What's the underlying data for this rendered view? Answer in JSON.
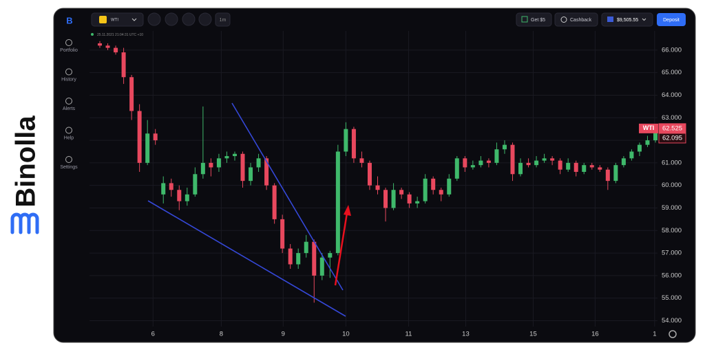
{
  "brand": "Binolla",
  "sidebar": [
    "Portfolio",
    "History",
    "Alerts",
    "Help",
    "Settings"
  ],
  "topbar": {
    "asset": "WTI",
    "timeframe": "1m",
    "bonus": "Get $5",
    "cashback": "Cashback",
    "balance": "$9,505.55",
    "deposit": "Deposit"
  },
  "timestamp": "25.11.2021 21:04:31 UTC +10",
  "chart_data": {
    "type": "candlestick",
    "candles": [
      [
        66.3,
        66.4,
        66.1,
        66.2
      ],
      [
        66.2,
        66.3,
        66.0,
        66.1
      ],
      [
        66.1,
        66.2,
        65.8,
        65.9
      ],
      [
        65.9,
        66.1,
        64.5,
        64.8
      ],
      [
        64.8,
        64.9,
        62.9,
        63.3
      ],
      [
        63.3,
        63.6,
        60.6,
        61.0
      ],
      [
        61.0,
        62.9,
        60.9,
        62.3
      ],
      [
        62.3,
        62.5,
        61.8,
        62.0
      ],
      [
        59.6,
        60.4,
        59.2,
        60.1
      ],
      [
        60.1,
        60.3,
        59.5,
        59.8
      ],
      [
        59.8,
        60.0,
        58.9,
        59.3
      ],
      [
        59.3,
        59.9,
        59.1,
        59.6
      ],
      [
        59.6,
        60.8,
        59.5,
        60.5
      ],
      [
        60.5,
        63.5,
        60.3,
        61.0
      ],
      [
        61.0,
        61.2,
        60.4,
        60.8
      ],
      [
        60.8,
        61.4,
        60.6,
        61.2
      ],
      [
        61.2,
        61.5,
        61.0,
        61.3
      ],
      [
        61.3,
        61.5,
        61.1,
        61.4
      ],
      [
        61.4,
        61.5,
        59.9,
        60.2
      ],
      [
        60.2,
        61.0,
        60.0,
        60.8
      ],
      [
        60.8,
        61.4,
        60.6,
        61.2
      ],
      [
        61.2,
        61.3,
        59.8,
        60.0
      ],
      [
        60.0,
        60.1,
        58.3,
        58.5
      ],
      [
        58.5,
        58.7,
        57.0,
        57.2
      ],
      [
        57.2,
        57.4,
        56.3,
        56.5
      ],
      [
        56.5,
        57.2,
        56.3,
        57.0
      ],
      [
        57.0,
        57.8,
        56.8,
        57.5
      ],
      [
        57.5,
        57.6,
        54.8,
        56.0
      ],
      [
        56.0,
        57.0,
        55.8,
        56.8
      ],
      [
        56.8,
        57.1,
        55.9,
        57.0
      ],
      [
        57.0,
        61.8,
        56.9,
        61.5
      ],
      [
        61.5,
        62.8,
        61.3,
        62.5
      ],
      [
        62.5,
        62.6,
        61.0,
        61.2
      ],
      [
        61.2,
        61.5,
        60.8,
        61.0
      ],
      [
        61.0,
        61.1,
        59.8,
        60.0
      ],
      [
        60.0,
        60.4,
        59.6,
        59.8
      ],
      [
        59.8,
        59.9,
        58.4,
        59.0
      ],
      [
        59.0,
        60.1,
        58.9,
        59.8
      ],
      [
        59.8,
        59.9,
        59.4,
        59.6
      ],
      [
        59.6,
        59.7,
        59.0,
        59.2
      ],
      [
        59.2,
        59.5,
        59.0,
        59.3
      ],
      [
        59.3,
        60.5,
        59.2,
        60.3
      ],
      [
        60.3,
        60.4,
        59.6,
        59.8
      ],
      [
        59.8,
        59.9,
        59.3,
        59.6
      ],
      [
        59.6,
        60.5,
        59.5,
        60.3
      ],
      [
        60.3,
        61.3,
        60.2,
        61.2
      ],
      [
        61.2,
        61.3,
        60.6,
        60.8
      ],
      [
        60.8,
        61.1,
        60.7,
        60.9
      ],
      [
        60.9,
        61.3,
        60.8,
        61.1
      ],
      [
        61.1,
        61.2,
        60.8,
        61.0
      ],
      [
        61.0,
        61.9,
        60.9,
        61.6
      ],
      [
        61.6,
        62.0,
        61.4,
        61.8
      ],
      [
        61.8,
        61.9,
        60.2,
        60.5
      ],
      [
        60.5,
        61.2,
        60.4,
        61.0
      ],
      [
        61.0,
        61.2,
        60.8,
        60.9
      ],
      [
        60.9,
        61.3,
        60.8,
        61.1
      ],
      [
        61.1,
        61.4,
        61.0,
        61.2
      ],
      [
        61.2,
        61.3,
        60.9,
        61.1
      ],
      [
        61.1,
        61.2,
        60.5,
        60.7
      ],
      [
        60.7,
        61.2,
        60.6,
        61.0
      ],
      [
        61.0,
        61.1,
        60.4,
        60.6
      ],
      [
        60.6,
        61.0,
        60.5,
        60.9
      ],
      [
        60.9,
        61.0,
        60.7,
        60.8
      ],
      [
        60.8,
        60.9,
        60.6,
        60.7
      ],
      [
        60.7,
        60.8,
        59.8,
        60.2
      ],
      [
        60.2,
        61.0,
        60.1,
        60.9
      ],
      [
        60.9,
        61.3,
        60.8,
        61.2
      ],
      [
        61.2,
        61.6,
        61.1,
        61.5
      ],
      [
        61.5,
        61.9,
        61.3,
        61.8
      ],
      [
        61.8,
        62.2,
        61.7,
        62.0
      ],
      [
        62.0,
        62.6,
        61.9,
        62.5
      ]
    ],
    "up_color": "#3fb96b",
    "down_color": "#e8485e",
    "xlim": [
      0,
      70
    ],
    "xticks": [
      {
        "value": 6.7,
        "label": "6"
      },
      {
        "value": 15.3,
        "label": "8"
      },
      {
        "value": 23.1,
        "label": "9"
      },
      {
        "value": 31.0,
        "label": "10"
      },
      {
        "value": 38.9,
        "label": "11"
      },
      {
        "value": 46.1,
        "label": "13"
      },
      {
        "value": 54.6,
        "label": "15"
      },
      {
        "value": 62.4,
        "label": "16"
      },
      {
        "value": 69.9,
        "label": "1"
      }
    ],
    "ylim": [
      53.6,
      66.85
    ],
    "yticks": [
      {
        "value": 54,
        "label": "54.000"
      },
      {
        "value": 55,
        "label": "55.000"
      },
      {
        "value": 56,
        "label": "56.000"
      },
      {
        "value": 57,
        "label": "57.000"
      },
      {
        "value": 58,
        "label": "58.000"
      },
      {
        "value": 59,
        "label": "59.000"
      },
      {
        "value": 60,
        "label": "60.000"
      },
      {
        "value": 61,
        "label": "61.000"
      },
      {
        "value": 62,
        "label": "62.000"
      },
      {
        "value": 63,
        "label": "63.000"
      },
      {
        "value": 64,
        "label": "64.000"
      },
      {
        "value": 65,
        "label": "65.000"
      },
      {
        "value": 66,
        "label": "66.000"
      }
    ],
    "grid": true,
    "price_tags": [
      {
        "name": "WTI",
        "value": 62.525
      },
      {
        "value": 62.095
      }
    ]
  }
}
